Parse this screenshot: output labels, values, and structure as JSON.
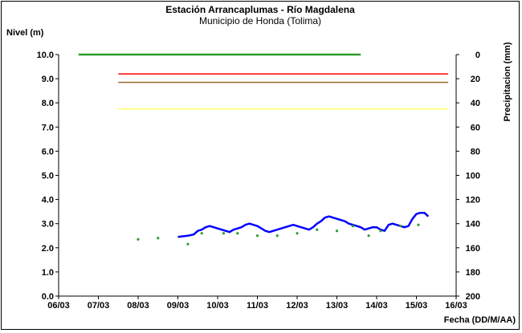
{
  "chart_data": {
    "type": "line",
    "title": "Estación Arrancaplumas - Río Magdalena",
    "subtitle": "Municipio de Honda (Tolima)",
    "ylabel": "Nivel (m)",
    "y2label": "Precipitacion (mm)",
    "xlabel": "Fecha (DD/M/AA)",
    "ylim": [
      0,
      10
    ],
    "y2lim": [
      200,
      0
    ],
    "xlim": [
      "06/03",
      "16/03"
    ],
    "x_ticks": [
      "06/03",
      "07/03",
      "08/03",
      "09/03",
      "10/03",
      "11/03",
      "12/03",
      "13/03",
      "14/03",
      "15/03",
      "16/03"
    ],
    "y_ticks": [
      "0.0",
      "1.0",
      "2.0",
      "3.0",
      "4.0",
      "5.0",
      "6.0",
      "7.0",
      "8.0",
      "9.0",
      "10.0"
    ],
    "y2_ticks": [
      "200",
      "180",
      "160",
      "140",
      "120",
      "100",
      "80",
      "60",
      "40",
      "20",
      "0"
    ],
    "grid": false,
    "colors": {
      "nivel": "#0000ff",
      "precip": "#2e9e2e",
      "red": "#ff0000",
      "brown": "#996633",
      "yellow": "#ffff66"
    },
    "series": [
      {
        "type": "line",
        "color": "#0000ff",
        "x": [
          9.0,
          9.25,
          9.4,
          9.5,
          9.6,
          9.7,
          9.8,
          9.9,
          10.0,
          10.1,
          10.2,
          10.3,
          10.4,
          10.5,
          10.6,
          10.7,
          10.8,
          10.9,
          11.0,
          11.1,
          11.2,
          11.3,
          11.4,
          11.5,
          11.6,
          11.7,
          11.8,
          11.9,
          12.0,
          12.1,
          12.2,
          12.3,
          12.4,
          12.5,
          12.6,
          12.7,
          12.8,
          12.9,
          13.0,
          13.1,
          13.2,
          13.3,
          13.4,
          13.5,
          13.6,
          13.7,
          13.8,
          13.9,
          14.0,
          14.1,
          14.2,
          14.3,
          14.4,
          14.5,
          14.6,
          14.7,
          14.8,
          14.9,
          15.0,
          15.1,
          15.2,
          15.3
        ],
        "y": [
          2.45,
          2.5,
          2.55,
          2.7,
          2.75,
          2.85,
          2.9,
          2.85,
          2.8,
          2.75,
          2.7,
          2.65,
          2.75,
          2.8,
          2.85,
          2.95,
          3.0,
          2.95,
          2.9,
          2.8,
          2.7,
          2.65,
          2.7,
          2.75,
          2.8,
          2.85,
          2.9,
          2.95,
          2.9,
          2.85,
          2.8,
          2.75,
          2.85,
          3.0,
          3.1,
          3.25,
          3.3,
          3.25,
          3.2,
          3.15,
          3.1,
          3.0,
          2.95,
          2.9,
          2.85,
          2.75,
          2.8,
          2.85,
          2.85,
          2.75,
          2.7,
          2.95,
          3.0,
          2.95,
          2.9,
          2.85,
          2.9,
          3.2,
          3.4,
          3.45,
          3.45,
          3.3
        ]
      },
      {
        "type": "scatter",
        "color": "#2e9e2e",
        "axis": "y2",
        "x": [
          8.0,
          8.5,
          9.25,
          9.6,
          10.15,
          10.5,
          11.0,
          11.5,
          12.0,
          12.5,
          13.0,
          13.4,
          13.8,
          14.1,
          14.6,
          15.05
        ],
        "y": [
          153,
          152,
          157,
          148,
          148,
          148,
          150,
          150,
          148,
          145,
          146,
          142,
          150,
          146,
          142,
          141
        ]
      },
      {
        "type": "line",
        "color": "#2e9e2e",
        "axis": "y2",
        "x": [
          6.5,
          13.6
        ],
        "y": [
          0,
          0
        ]
      },
      {
        "type": "line",
        "color": "#ff0000",
        "x": [
          7.5,
          15.8
        ],
        "y": [
          9.2,
          9.2
        ]
      },
      {
        "type": "line",
        "color": "#996633",
        "x": [
          7.5,
          15.8
        ],
        "y": [
          8.85,
          8.85
        ]
      },
      {
        "type": "line",
        "color": "#ffff66",
        "x": [
          7.5,
          15.8
        ],
        "y": [
          7.75,
          7.75
        ]
      }
    ]
  }
}
